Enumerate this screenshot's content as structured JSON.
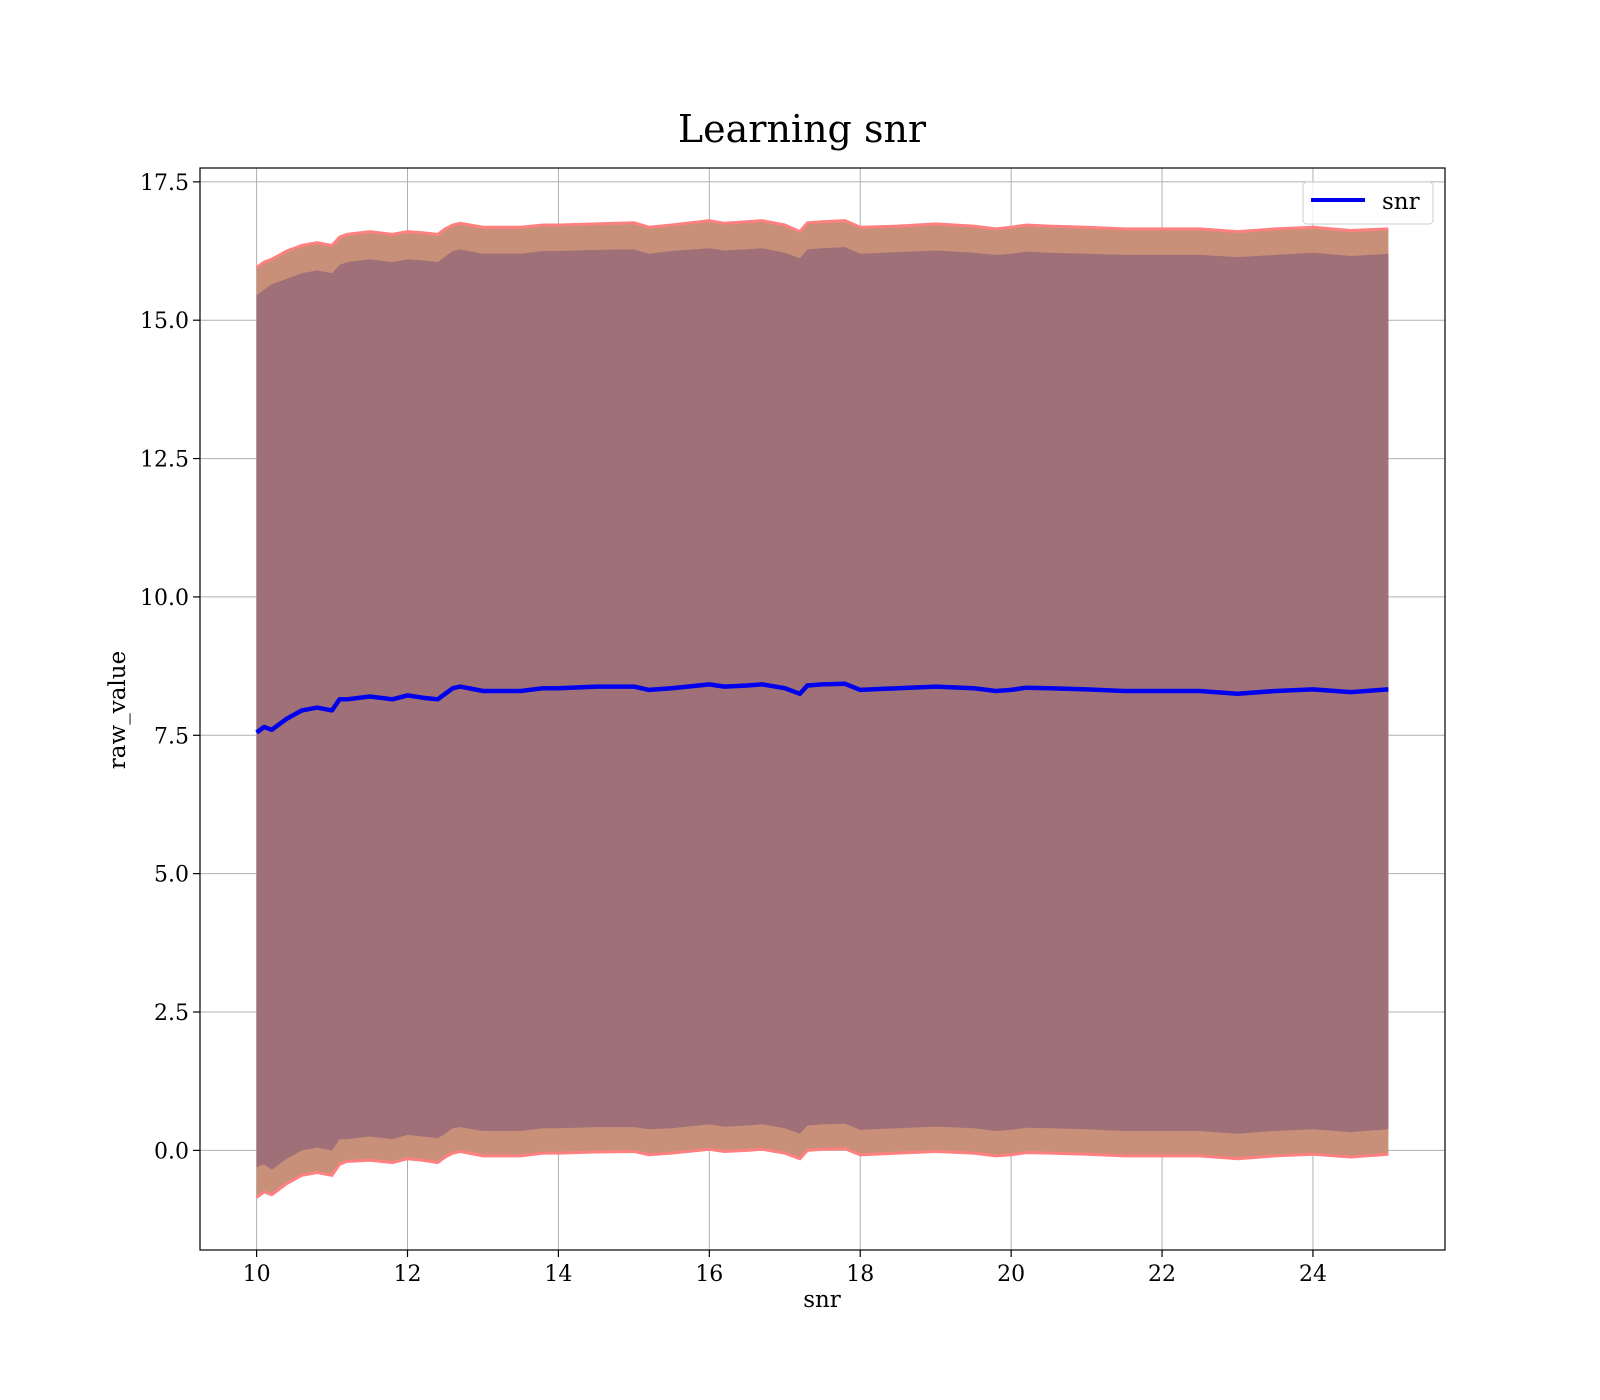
{
  "chart_data": {
    "type": "line",
    "title": "Learning snr",
    "xlabel": "snr",
    "ylabel": "raw_value",
    "xlim": [
      9.25,
      25.75
    ],
    "ylim": [
      -1.8,
      17.75
    ],
    "x_ticks": [
      10,
      12,
      14,
      16,
      18,
      20,
      22,
      24
    ],
    "y_ticks": [
      0.0,
      2.5,
      5.0,
      7.5,
      10.0,
      12.5,
      15.0,
      17.5
    ],
    "y_tick_labels": [
      "0.0",
      "2.5",
      "5.0",
      "7.5",
      "10.0",
      "12.5",
      "15.0",
      "17.5"
    ],
    "grid": true,
    "legend": {
      "position": "top-right",
      "entries": [
        "snr"
      ]
    },
    "colors": {
      "line": "#0000ee",
      "outer_band": "#c89078",
      "outer_band_edge": "#ff8080",
      "inner_band": "#a07078"
    },
    "series": [
      {
        "name": "snr",
        "x": [
          10.0,
          10.1,
          10.2,
          10.4,
          10.6,
          10.8,
          11.0,
          11.1,
          11.2,
          11.5,
          11.8,
          12.0,
          12.2,
          12.4,
          12.5,
          12.6,
          12.7,
          13.0,
          13.5,
          13.8,
          14.0,
          14.5,
          15.0,
          15.2,
          15.5,
          16.0,
          16.2,
          16.5,
          16.7,
          17.0,
          17.2,
          17.3,
          17.5,
          17.8,
          18.0,
          18.5,
          19.0,
          19.5,
          19.8,
          20.0,
          20.2,
          20.5,
          21.0,
          21.5,
          22.0,
          22.5,
          23.0,
          23.5,
          24.0,
          24.5,
          25.0
        ],
        "y": [
          7.55,
          7.65,
          7.6,
          7.8,
          7.95,
          8.0,
          7.95,
          8.15,
          8.15,
          8.2,
          8.15,
          8.22,
          8.18,
          8.15,
          8.25,
          8.35,
          8.38,
          8.3,
          8.3,
          8.35,
          8.35,
          8.38,
          8.38,
          8.32,
          8.35,
          8.42,
          8.38,
          8.4,
          8.42,
          8.35,
          8.25,
          8.4,
          8.42,
          8.43,
          8.32,
          8.35,
          8.38,
          8.35,
          8.3,
          8.32,
          8.36,
          8.35,
          8.33,
          8.3,
          8.3,
          8.3,
          8.25,
          8.3,
          8.33,
          8.28,
          8.33
        ],
        "inner_upper": [
          15.45,
          15.55,
          15.65,
          15.75,
          15.85,
          15.9,
          15.85,
          16.0,
          16.05,
          16.1,
          16.05,
          16.1,
          16.08,
          16.05,
          16.15,
          16.25,
          16.28,
          16.2,
          16.2,
          16.25,
          16.25,
          16.27,
          16.28,
          16.2,
          16.25,
          16.3,
          16.26,
          16.28,
          16.3,
          16.22,
          16.12,
          16.28,
          16.3,
          16.32,
          16.2,
          16.23,
          16.26,
          16.22,
          16.18,
          16.2,
          16.24,
          16.22,
          16.2,
          16.18,
          16.18,
          16.18,
          16.14,
          16.18,
          16.22,
          16.16,
          16.2
        ],
        "inner_lower": [
          -0.3,
          -0.25,
          -0.35,
          -0.15,
          0.0,
          0.05,
          0.0,
          0.2,
          0.2,
          0.25,
          0.2,
          0.28,
          0.25,
          0.22,
          0.3,
          0.4,
          0.42,
          0.35,
          0.35,
          0.4,
          0.4,
          0.42,
          0.42,
          0.38,
          0.4,
          0.47,
          0.43,
          0.45,
          0.47,
          0.4,
          0.3,
          0.45,
          0.47,
          0.48,
          0.37,
          0.4,
          0.43,
          0.4,
          0.35,
          0.37,
          0.41,
          0.4,
          0.38,
          0.35,
          0.35,
          0.35,
          0.3,
          0.35,
          0.38,
          0.33,
          0.38
        ],
        "outer_upper": [
          15.95,
          16.05,
          16.1,
          16.25,
          16.35,
          16.4,
          16.35,
          16.5,
          16.55,
          16.6,
          16.55,
          16.6,
          16.58,
          16.55,
          16.65,
          16.72,
          16.75,
          16.68,
          16.68,
          16.72,
          16.72,
          16.74,
          16.76,
          16.68,
          16.72,
          16.8,
          16.75,
          16.78,
          16.8,
          16.72,
          16.6,
          16.76,
          16.78,
          16.8,
          16.68,
          16.7,
          16.74,
          16.7,
          16.65,
          16.68,
          16.72,
          16.7,
          16.68,
          16.65,
          16.65,
          16.65,
          16.6,
          16.65,
          16.68,
          16.62,
          16.65
        ],
        "outer_lower": [
          -0.85,
          -0.75,
          -0.8,
          -0.6,
          -0.45,
          -0.4,
          -0.45,
          -0.25,
          -0.2,
          -0.18,
          -0.22,
          -0.15,
          -0.18,
          -0.22,
          -0.12,
          -0.05,
          -0.02,
          -0.1,
          -0.1,
          -0.05,
          -0.05,
          -0.03,
          -0.02,
          -0.08,
          -0.05,
          0.02,
          -0.02,
          0.0,
          0.02,
          -0.05,
          -0.15,
          0.0,
          0.02,
          0.03,
          -0.08,
          -0.05,
          -0.02,
          -0.05,
          -0.1,
          -0.08,
          -0.04,
          -0.05,
          -0.07,
          -0.1,
          -0.1,
          -0.1,
          -0.15,
          -0.1,
          -0.07,
          -0.12,
          -0.07
        ]
      }
    ]
  }
}
